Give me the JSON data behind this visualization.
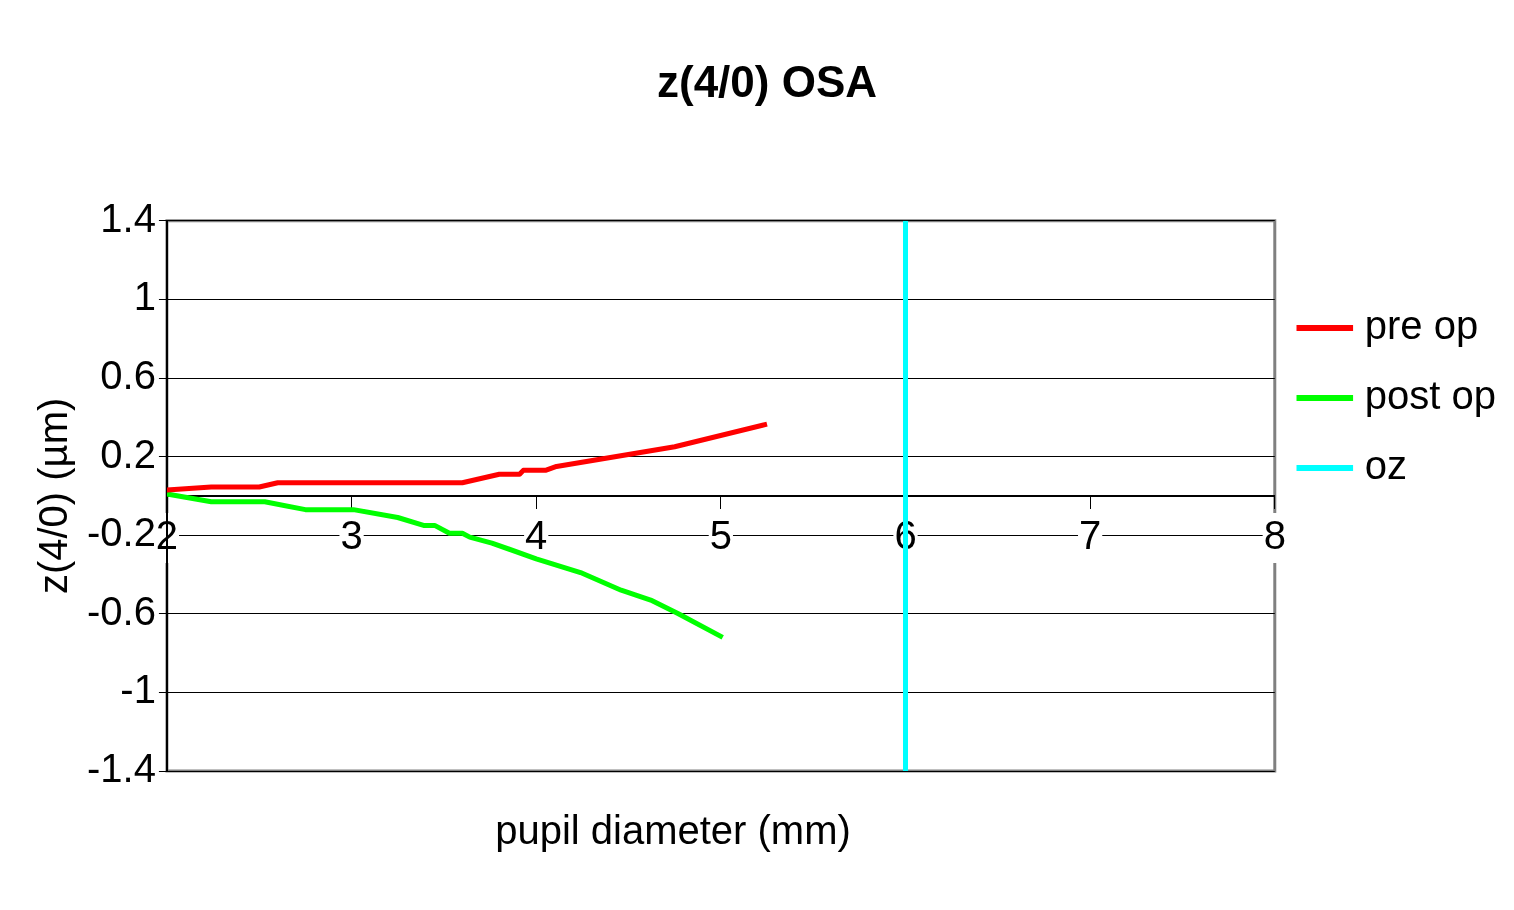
{
  "chart_data": {
    "type": "line",
    "title": "z(4/0) OSA",
    "xlabel": "pupil diameter (mm)",
    "ylabel": "z(4/0) (µm)",
    "xlim": [
      2,
      8
    ],
    "xticks": [
      2,
      3,
      4,
      5,
      6,
      7,
      8
    ],
    "ylim": [
      -1.4,
      1.4
    ],
    "yticks": [
      -1.4,
      -1,
      -0.6,
      -0.2,
      0.2,
      0.6,
      1,
      1.4
    ],
    "grid": "y",
    "legend": "right",
    "marker": "none",
    "series": [
      {
        "name": "pre op",
        "color": "#ff0000",
        "x": [
          2,
          2.24,
          2.5,
          2.6,
          3.6,
          3.8,
          3.91,
          3.93,
          4.05,
          4.11,
          4.75,
          5.25
        ],
        "values": [
          0.03,
          0.045,
          0.045,
          0.067,
          0.067,
          0.11,
          0.11,
          0.13,
          0.13,
          0.15,
          0.25,
          0.365
        ]
      },
      {
        "name": "post op",
        "color": "#00ff00",
        "x": [
          2,
          2.24,
          2.53,
          2.75,
          3.01,
          3.25,
          3.39,
          3.45,
          3.53,
          3.6,
          3.64,
          3.76,
          4.0,
          4.24,
          4.46,
          4.62,
          4.77,
          5.01
        ],
        "values": [
          0.01,
          -0.03,
          -0.03,
          -0.07,
          -0.07,
          -0.11,
          -0.15,
          -0.15,
          -0.19,
          -0.19,
          -0.21,
          -0.24,
          -0.32,
          -0.39,
          -0.48,
          -0.53,
          -0.6,
          -0.72
        ]
      },
      {
        "name": "oz",
        "color": "#00ffff",
        "x": [
          6,
          6
        ],
        "values": [
          -1.4,
          1.4
        ]
      }
    ]
  }
}
